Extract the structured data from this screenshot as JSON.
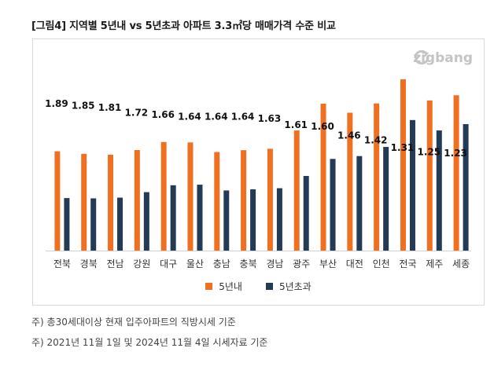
{
  "figure": {
    "title": "[그림4] 지역별 5년내 vs 5년초과 아파트 3.3㎡당 매매가격 수준 비교",
    "logo": "zigbang",
    "notes": [
      "주) 총30세대이상 현재 입주아파트의 직방시세 기준",
      "주) 2021년 11월 1일 및 2024년 11월 4일 시세자료 기준"
    ]
  },
  "colors": {
    "series_new": "#F07021",
    "series_old": "#243B55"
  },
  "chart_data": {
    "type": "bar",
    "categories": [
      "전북",
      "경북",
      "전남",
      "강원",
      "대구",
      "울산",
      "충남",
      "충북",
      "경남",
      "광주",
      "부산",
      "대전",
      "인천",
      "전국",
      "제주",
      "세종"
    ],
    "series": [
      {
        "name": "5년내",
        "values": [
          705,
          687,
          681,
          714,
          771,
          768,
          700,
          713,
          723,
          853,
          1043,
          979,
          1045,
          1216,
          1066,
          1103
        ]
      },
      {
        "name": "5년초과",
        "values": [
          373,
          371,
          376,
          415,
          464,
          468,
          427,
          435,
          443,
          530,
          651,
          671,
          736,
          927,
          853,
          898
        ]
      }
    ],
    "ratio_labels": [
      "1.89",
      "1.85",
      "1.81",
      "1.72",
      "1.66",
      "1.64",
      "1.64",
      "1.64",
      "1.63",
      "1.61",
      "1.60",
      "1.46",
      "1.42",
      "1.31",
      "1.25",
      "1.23"
    ],
    "ratio_y": [
      2.08,
      2.05,
      2.02,
      1.95,
      1.92,
      1.89,
      1.89,
      1.89,
      1.86,
      1.77,
      1.75,
      1.62,
      1.55,
      1.44,
      1.38,
      1.36
    ],
    "ylim": [
      0,
      2.6
    ],
    "xlabel": "",
    "ylabel": "",
    "legend_position": "bottom"
  }
}
